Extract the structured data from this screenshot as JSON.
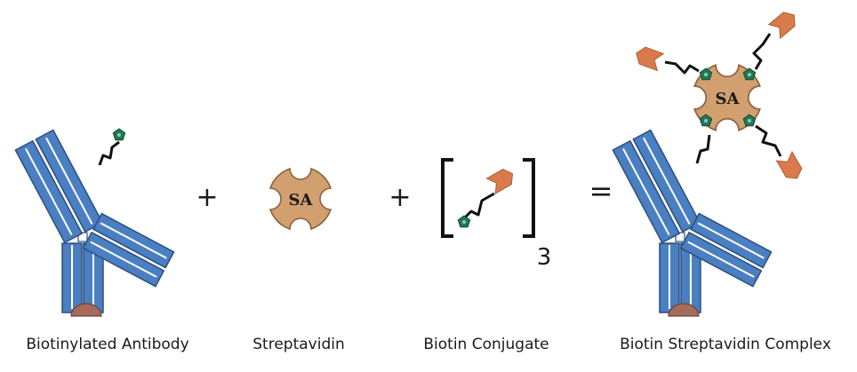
{
  "labels": {
    "antibody": "Biotinylated Antibody",
    "streptavidin": "Streptavidin",
    "conjugate": "Biotin Conjugate",
    "complex": "Biotin Streptavidin Complex"
  },
  "operators": {
    "plus": "+",
    "equals": "="
  },
  "sa_label": "SA",
  "conjugate_subscript": "3",
  "colors": {
    "antibody_blue": "#4a7fc1",
    "antibody_outline": "#2d4f80",
    "antigen_cap": "#a56b5c",
    "streptavidin": "#d2a06e",
    "streptavidin_outline": "#8a6240",
    "biotin": "#1f7a55",
    "conjugate_orange": "#d97a4a",
    "linker": "#111111"
  }
}
